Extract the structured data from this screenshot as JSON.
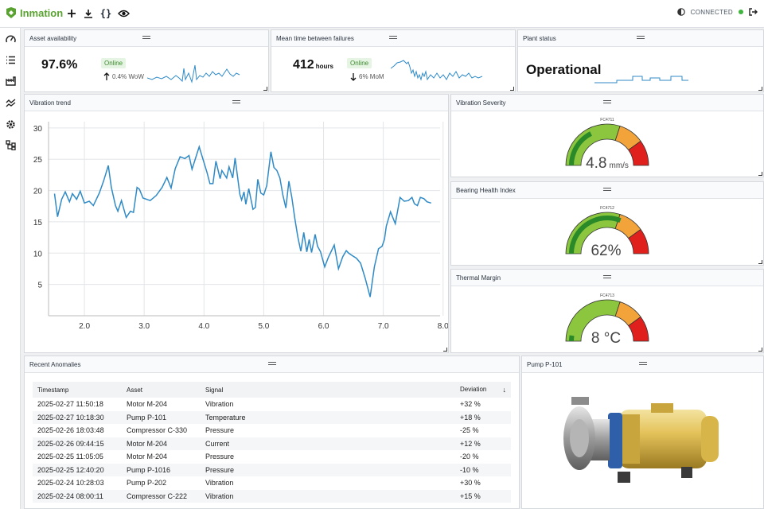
{
  "app": {
    "name": "Inmation",
    "status": "CONNECTED"
  },
  "colors": {
    "brand": "#5aa332",
    "line": "#2f8ac6",
    "gauge_green": "#8cc63e",
    "gauge_dark": "#2a8a2a",
    "gauge_orange": "#f2a33a",
    "gauge_red": "#e0201c",
    "connected": "#3fb43f"
  },
  "toolbar": {
    "icons": [
      "add-icon",
      "download-icon",
      "code-braces-icon",
      "eye-icon"
    ]
  },
  "sidebar": {
    "icons": [
      "dashboard-icon",
      "list-icon",
      "factory-icon",
      "trend-icon",
      "settings-icon",
      "hierarchy-icon"
    ]
  },
  "kpi": {
    "availability": {
      "title": "Asset availability",
      "value": "97.6%",
      "badge": "Online",
      "trend": "0.4% WoW",
      "trend_dir": "up"
    },
    "mtbf": {
      "title": "Mean time between failures",
      "value": "412",
      "unit": "hours",
      "badge": "Online",
      "trend": "6% MoM",
      "trend_dir": "down"
    },
    "plant": {
      "title": "Plant status",
      "value": "Operational"
    }
  },
  "vibration_trend": {
    "title": "Vibration trend"
  },
  "chart_data": {
    "type": "line",
    "title": "",
    "xlabel": "",
    "ylabel": "",
    "xlim": [
      1.4,
      7.95
    ],
    "ylim": [
      0,
      31
    ],
    "xticks": [
      "2.0",
      "3.0",
      "4.0",
      "5.0",
      "6.0",
      "7.0",
      "8.0"
    ],
    "yticks": [
      "5",
      "10",
      "15",
      "20",
      "25",
      "30"
    ],
    "grid": true,
    "x": [
      1.5,
      1.55,
      1.62,
      1.68,
      1.75,
      1.8,
      1.87,
      1.93,
      2.0,
      2.08,
      2.15,
      2.25,
      2.32,
      2.4,
      2.45,
      2.52,
      2.56,
      2.62,
      2.7,
      2.77,
      2.82,
      2.88,
      2.92,
      2.98,
      3.1,
      3.2,
      3.3,
      3.38,
      3.45,
      3.52,
      3.6,
      3.68,
      3.75,
      3.8,
      3.88,
      3.92,
      3.98,
      4.05,
      4.1,
      4.15,
      4.2,
      4.27,
      4.3,
      4.38,
      4.42,
      4.48,
      4.52,
      4.6,
      4.63,
      4.67,
      4.7,
      4.75,
      4.82,
      4.86,
      4.9,
      4.95,
      5.0,
      5.05,
      5.12,
      5.17,
      5.22,
      5.27,
      5.32,
      5.37,
      5.42,
      5.47,
      5.52,
      5.57,
      5.62,
      5.67,
      5.72,
      5.76,
      5.8,
      5.86,
      5.9,
      5.95,
      6.02,
      6.08,
      6.12,
      6.18,
      6.25,
      6.32,
      6.38,
      6.42,
      6.48,
      6.55,
      6.62,
      6.7,
      6.78,
      6.85,
      6.92,
      6.98,
      7.02,
      7.05,
      7.12,
      7.2,
      7.28,
      7.35,
      7.42,
      7.48,
      7.52,
      7.57,
      7.62,
      7.68,
      7.73,
      7.8
    ],
    "series": [
      {
        "name": "",
        "values": [
          19.5,
          15.8,
          18.6,
          19.8,
          18.2,
          19.5,
          18.6,
          19.9,
          18.0,
          18.3,
          17.6,
          19.6,
          21.5,
          24.0,
          20.5,
          17.6,
          16.7,
          18.4,
          15.7,
          16.7,
          16.5,
          20.5,
          20.2,
          18.8,
          18.4,
          19.2,
          20.5,
          22.1,
          20.4,
          23.5,
          25.4,
          25.1,
          25.6,
          23.4,
          25.8,
          27.0,
          25.1,
          22.9,
          21.1,
          21.1,
          24.7,
          21.9,
          23.2,
          22.0,
          23.8,
          22.0,
          25.2,
          19.4,
          18.5,
          19.8,
          17.8,
          20.3,
          17.0,
          17.3,
          21.8,
          19.6,
          19.3,
          20.8,
          26.2,
          23.7,
          23.2,
          22.0,
          19.3,
          17.2,
          21.5,
          18.9,
          15.5,
          12.6,
          10.3,
          13.3,
          10.2,
          12.2,
          10.1,
          13.0,
          11.1,
          10.2,
          7.8,
          9.3,
          10.1,
          11.3,
          7.5,
          9.4,
          10.4,
          10.0,
          9.6,
          9.2,
          8.4,
          5.9,
          3.0,
          7.8,
          10.7,
          11.1,
          12.2,
          14.3,
          16.6,
          14.7,
          18.9,
          18.3,
          18.4,
          18.9,
          17.9,
          17.6,
          18.9,
          18.7,
          18.2,
          18.0
        ]
      }
    ]
  },
  "gauges": [
    {
      "title": "Vibration Severity",
      "tag": "FC4711",
      "value": "4.8",
      "unit": "mm/s",
      "fraction": 0.35
    },
    {
      "title": "Bearing Health Index",
      "tag": "FC4712",
      "value": "62%",
      "unit": "",
      "fraction": 0.62
    },
    {
      "title": "Thermal Margin",
      "tag": "FC4713",
      "value": "8 °C",
      "unit": "",
      "fraction": 0.05
    }
  ],
  "anomalies": {
    "title": "Recent Anomalies",
    "columns": [
      "Timestamp",
      "Asset",
      "Signal",
      "Deviation"
    ],
    "rows": [
      [
        "2025-02-27 11:50:18",
        "Motor M-204",
        "Vibration",
        "+32 %"
      ],
      [
        "2025-02-27 10:18:30",
        "Pump P-101",
        "Temperature",
        "+18 %"
      ],
      [
        "2025-02-26 18:03:48",
        "Compressor C-330",
        "Pressure",
        "-25 %"
      ],
      [
        "2025-02-26 09:44:15",
        "Motor M-204",
        "Current",
        "+12 %"
      ],
      [
        "2025-02-25 11:05:05",
        "Motor M-204",
        "Pressure",
        "-20 %"
      ],
      [
        "2025-02-25 12:40:20",
        "Pump P-1016",
        "Pressure",
        "-10 %"
      ],
      [
        "2025-02-24 10:28:03",
        "Pump P-202",
        "Vibration",
        "+30 %"
      ],
      [
        "2025-02-24 08:00:11",
        "Compressor C-222",
        "Vibration",
        "+15 %"
      ]
    ]
  },
  "pump": {
    "title": "Pump P-101"
  }
}
